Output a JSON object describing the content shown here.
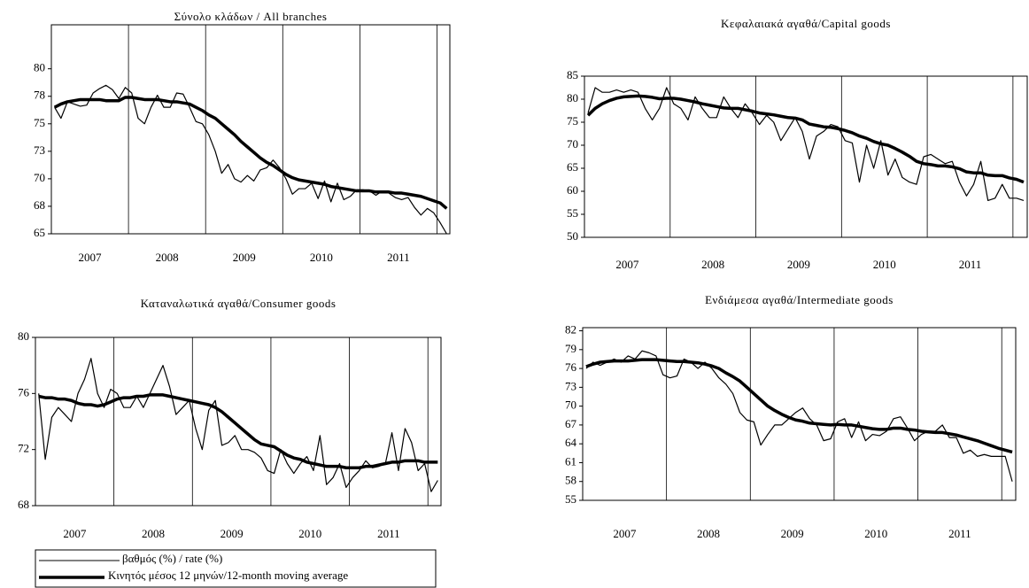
{
  "chart_data": [
    {
      "type": "line",
      "title": "Σύνολο κλάδων / All branches",
      "categories": [
        null,
        null,
        null,
        null,
        null,
        "2007",
        null,
        null,
        null,
        null,
        null,
        null,
        null,
        null,
        null,
        null,
        null,
        "2008",
        null,
        null,
        null,
        null,
        null,
        null,
        null,
        null,
        null,
        null,
        null,
        "2009",
        null,
        null,
        null,
        null,
        null,
        null,
        null,
        null,
        null,
        null,
        null,
        "2010",
        null,
        null,
        null,
        null,
        null,
        null,
        null,
        null,
        null,
        null,
        null,
        "2011",
        null,
        null,
        null,
        null,
        null,
        null,
        null,
        null
      ],
      "ylim": [
        65,
        84
      ],
      "yticks": [
        65,
        {
          "value": 67.5,
          "label": "68"
        },
        70,
        {
          "value": 72.5,
          "label": "73"
        },
        75,
        {
          "value": 77.5,
          "label": "78"
        },
        80
      ],
      "series": [
        {
          "name": "βαθμός (%) / rate (%)",
          "color": "#000000",
          "values": [
            76.5,
            75.5,
            77,
            76.8,
            76.6,
            76.7,
            77.8,
            78.2,
            78.5,
            78.1,
            77.3,
            78.3,
            77.8,
            75.5,
            75,
            76.5,
            77.6,
            76.5,
            76.5,
            77.8,
            77.7,
            76.5,
            75.2,
            75,
            74,
            72.5,
            70.5,
            71.3,
            70,
            69.7,
            70.3,
            69.8,
            70.8,
            71,
            71.7,
            71,
            70,
            68.6,
            69.1,
            69.1,
            69.6,
            68.2,
            69.8,
            67.9,
            69.6,
            68.1,
            68.4,
            69,
            69,
            68.9,
            68.5,
            68.9,
            68.7,
            68.3,
            68.1,
            68.3,
            67.4,
            66.7,
            67.3,
            66.9,
            66,
            65
          ]
        },
        {
          "name": "Κινητός μέσος 12 μηνών/12-month moving average",
          "color": "#000000",
          "values": [
            76.5,
            76.8,
            77,
            77.1,
            77.2,
            77.2,
            77.2,
            77.2,
            77.1,
            77.1,
            77.1,
            77.4,
            77.4,
            77.3,
            77.2,
            77.2,
            77.2,
            77.1,
            77,
            77,
            76.9,
            76.8,
            76.5,
            76.2,
            75.8,
            75.5,
            75,
            74.5,
            74,
            73.4,
            72.9,
            72.4,
            71.9,
            71.5,
            71.2,
            70.8,
            70.4,
            70.1,
            69.9,
            69.8,
            69.7,
            69.6,
            69.5,
            69.3,
            69.2,
            69.1,
            69,
            68.9,
            68.9,
            68.9,
            68.8,
            68.8,
            68.8,
            68.7,
            68.7,
            68.6,
            68.5,
            68.4,
            68.2,
            68,
            67.8,
            67.3
          ]
        }
      ]
    },
    {
      "type": "line",
      "title": "Κεφαλαιακά αγαθά/Capital goods",
      "categories": [
        null,
        null,
        null,
        null,
        null,
        "2007",
        null,
        null,
        null,
        null,
        null,
        null,
        null,
        null,
        null,
        null,
        null,
        "2008",
        null,
        null,
        null,
        null,
        null,
        null,
        null,
        null,
        null,
        null,
        null,
        "2009",
        null,
        null,
        null,
        null,
        null,
        null,
        null,
        null,
        null,
        null,
        null,
        "2010",
        null,
        null,
        null,
        null,
        null,
        null,
        null,
        null,
        null,
        null,
        null,
        "2011",
        null,
        null,
        null,
        null,
        null,
        null,
        null,
        null
      ],
      "ylim": [
        50,
        85
      ],
      "yticks": [
        50,
        55,
        60,
        65,
        70,
        75,
        80,
        85
      ],
      "series": [
        {
          "name": "βαθμός (%) / rate (%)",
          "color": "#000000",
          "values": [
            77,
            82.5,
            81.5,
            81.5,
            82,
            81.5,
            82,
            81.5,
            78,
            75.5,
            78,
            82.5,
            79,
            78,
            75.5,
            80.5,
            78,
            76,
            76,
            80.5,
            78,
            76,
            79,
            77,
            74.5,
            76.5,
            75,
            71,
            73.5,
            76,
            73,
            67,
            72,
            73,
            74.5,
            74,
            71,
            70.5,
            62,
            70,
            65,
            71,
            63.5,
            67,
            63,
            62,
            61.5,
            67.5,
            68,
            67,
            66,
            66.5,
            62,
            59,
            61.5,
            66.5,
            58,
            58.5,
            61.5,
            58.5,
            58.5,
            58
          ]
        },
        {
          "name": "Κινητός μέσος 12 μηνών/12-month moving average",
          "color": "#000000",
          "values": [
            76.5,
            78,
            79,
            79.7,
            80.2,
            80.5,
            80.6,
            80.7,
            80.6,
            80.4,
            80.1,
            80.2,
            80.2,
            80,
            79.7,
            79.4,
            79,
            78.7,
            78.4,
            78.1,
            78,
            78,
            77.7,
            77.4,
            77,
            76.8,
            76.6,
            76.3,
            76,
            75.9,
            75.5,
            74.6,
            74.3,
            74,
            73.9,
            73.6,
            73.2,
            72.7,
            72,
            71.5,
            70.8,
            70.3,
            70,
            69.3,
            68.5,
            67.6,
            66.5,
            66,
            65.8,
            65.5,
            65.5,
            65.3,
            64.9,
            64.2,
            64,
            64,
            63.5,
            63.4,
            63.4,
            62.9,
            62.6,
            62
          ]
        }
      ]
    },
    {
      "type": "line",
      "title": "Καταναλωτικά αγαθά/Consumer goods",
      "categories": [
        null,
        null,
        null,
        null,
        null,
        "2007",
        null,
        null,
        null,
        null,
        null,
        null,
        null,
        null,
        null,
        null,
        null,
        "2008",
        null,
        null,
        null,
        null,
        null,
        null,
        null,
        null,
        null,
        null,
        null,
        "2009",
        null,
        null,
        null,
        null,
        null,
        null,
        null,
        null,
        null,
        null,
        null,
        "2010",
        null,
        null,
        null,
        null,
        null,
        null,
        null,
        null,
        null,
        null,
        null,
        "2011",
        null,
        null,
        null,
        null,
        null,
        null,
        null,
        null
      ],
      "ylim": [
        68,
        80
      ],
      "yticks": [
        68,
        72,
        76,
        80
      ],
      "series": [
        {
          "name": "βαθμός (%) / rate (%)",
          "color": "#000000",
          "values": [
            76,
            71.3,
            74.3,
            75,
            74.5,
            74,
            76,
            77,
            78.5,
            76,
            75,
            76.3,
            76,
            75,
            75,
            75.8,
            75,
            76,
            77,
            78,
            76.5,
            74.5,
            75,
            75.5,
            73.5,
            72,
            74.8,
            75.5,
            72.3,
            72.5,
            73,
            72,
            72,
            71.8,
            71.4,
            70.5,
            70.3,
            72,
            71,
            70.3,
            71,
            71.5,
            70.5,
            73,
            69.5,
            70,
            71,
            69.3,
            70,
            70.5,
            71.2,
            70.7,
            70.8,
            71,
            73.2,
            70.5,
            73.5,
            72.5,
            70.5,
            71,
            69,
            69.8
          ]
        },
        {
          "name": "Κινητός μέσος 12 μηνών/12-month moving average",
          "color": "#000000",
          "values": [
            75.8,
            75.7,
            75.7,
            75.6,
            75.6,
            75.5,
            75.3,
            75.2,
            75.2,
            75.1,
            75.2,
            75.4,
            75.6,
            75.7,
            75.7,
            75.8,
            75.8,
            75.9,
            75.9,
            75.9,
            75.8,
            75.7,
            75.6,
            75.5,
            75.4,
            75.3,
            75.2,
            75,
            74.7,
            74.3,
            73.9,
            73.5,
            73.1,
            72.7,
            72.4,
            72.3,
            72.2,
            71.9,
            71.6,
            71.4,
            71.3,
            71.1,
            71,
            70.9,
            70.8,
            70.8,
            70.8,
            70.7,
            70.7,
            70.7,
            70.8,
            70.8,
            70.9,
            71,
            71.1,
            71.1,
            71.2,
            71.2,
            71.2,
            71.1,
            71.1,
            71.1
          ]
        }
      ]
    },
    {
      "type": "line",
      "title": "Ενδιάμεσα αγαθά/Intermediate goods",
      "categories": [
        null,
        null,
        null,
        null,
        null,
        "2007",
        null,
        null,
        null,
        null,
        null,
        null,
        null,
        null,
        null,
        null,
        null,
        "2008",
        null,
        null,
        null,
        null,
        null,
        null,
        null,
        null,
        null,
        null,
        null,
        "2009",
        null,
        null,
        null,
        null,
        null,
        null,
        null,
        null,
        null,
        null,
        null,
        "2010",
        null,
        null,
        null,
        null,
        null,
        null,
        null,
        null,
        null,
        null,
        null,
        "2011",
        null,
        null,
        null,
        null,
        null,
        null,
        null,
        null
      ],
      "ylim": [
        55,
        82.5
      ],
      "yticks": [
        55,
        58,
        61,
        64,
        67,
        70,
        73,
        76,
        79,
        82
      ],
      "series": [
        {
          "name": "βαθμός (%) / rate (%)",
          "color": "#000000",
          "values": [
            76,
            77,
            76.5,
            77,
            77.5,
            77,
            78,
            77.5,
            78.8,
            78.5,
            78,
            75,
            74.5,
            74.8,
            77.5,
            77,
            76,
            77,
            76,
            74.5,
            73.5,
            72,
            69,
            67.8,
            67.5,
            63.8,
            65.5,
            67,
            67,
            68,
            69,
            69.7,
            68,
            67,
            64.5,
            64.8,
            67.5,
            68,
            65,
            67.5,
            64.5,
            65.5,
            65.3,
            66,
            68,
            68.3,
            66.5,
            64.5,
            65.5,
            66,
            66,
            67,
            65,
            65,
            62.5,
            63,
            62,
            62.3,
            62,
            62,
            62,
            58
          ]
        },
        {
          "name": "Κινητός μέσος 12 μηνών/12-month moving average",
          "color": "#000000",
          "values": [
            76.3,
            76.7,
            77,
            77.1,
            77.2,
            77.2,
            77.2,
            77.3,
            77.4,
            77.4,
            77.4,
            77.3,
            77.2,
            77.1,
            77.1,
            77,
            76.9,
            76.7,
            76.4,
            76,
            75.3,
            74.7,
            74,
            73,
            72,
            71,
            70,
            69.3,
            68.7,
            68.2,
            67.8,
            67.6,
            67.3,
            67.2,
            67.1,
            67,
            67.1,
            67,
            67,
            66.8,
            66.6,
            66.4,
            66.3,
            66.3,
            66.5,
            66.5,
            66.3,
            66.2,
            66,
            65.9,
            65.8,
            65.8,
            65.6,
            65.4,
            65.1,
            64.8,
            64.5,
            64.1,
            63.7,
            63.3,
            63,
            62.7
          ]
        }
      ]
    }
  ]
}
